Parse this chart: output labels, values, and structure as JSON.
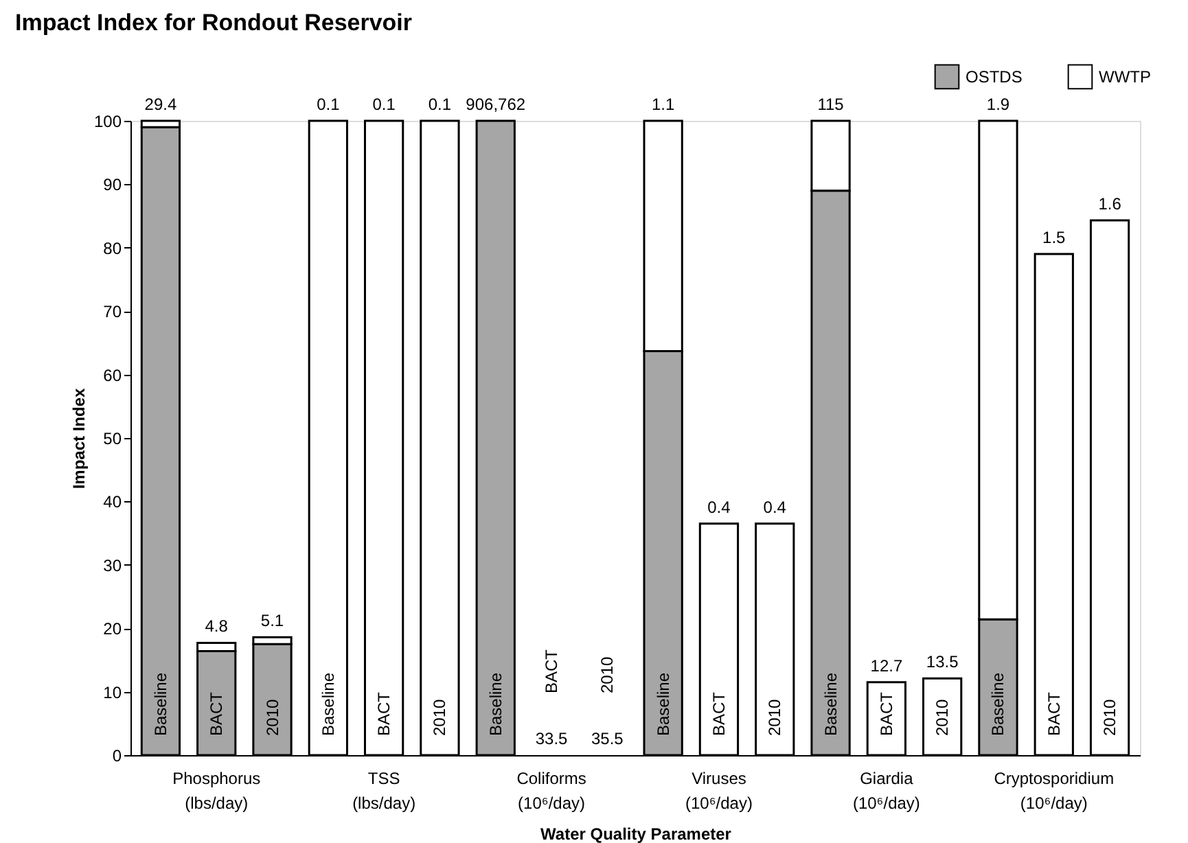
{
  "chart_data": {
    "type": "bar",
    "title": "Impact Index for Rondout Reservoir",
    "xlabel": "Water Quality Parameter",
    "ylabel": "Impact Index",
    "categories": [
      "Baseline",
      "BACT",
      "2010",
      "Baseline",
      "BACT",
      "2010",
      "Baseline",
      "BACT",
      "2010",
      "Baseline",
      "BACT",
      "2010",
      "Baseline",
      "BACT",
      "2010",
      "Baseline",
      "BACT",
      "2010"
    ],
    "stacked": true,
    "series": [
      {
        "name": "OSTDS",
        "color": "#a6a6a6",
        "values": [
          99,
          16.4,
          17.5,
          null,
          null,
          null,
          100,
          null,
          null,
          63.7,
          null,
          null,
          89,
          null,
          null,
          21.4,
          null,
          null
        ]
      },
      {
        "name": "WWTP",
        "color": "#ffffff",
        "values": [
          1,
          1.3,
          1.1,
          100,
          100,
          100,
          null,
          null,
          null,
          36.3,
          36.5,
          36.5,
          11,
          11.5,
          12.1,
          78.6,
          79,
          84.3
        ]
      }
    ],
    "annotations": [
      "Phosphorus\n(lbs/day)",
      "TSS\n(lbs/day)",
      "Coliforms\n(10⁶/day)",
      "Viruses\n(10⁶/day)",
      "Giardia\n(10⁶/day)",
      "Cryptosporidium\n(10⁶/day)",
      "29.4",
      "4.8",
      "5.1",
      "0.1",
      "0.1",
      "0.1",
      "906,762",
      "33.5",
      "35.5",
      "1.1",
      "0.4",
      "0.4",
      "115",
      "12.7",
      "13.5",
      "1.9",
      "1.5",
      "1.6"
    ],
    "ylim": [
      0,
      100
    ],
    "yticks": [
      0,
      10,
      20,
      30,
      40,
      50,
      60,
      70,
      80,
      90,
      100
    ],
    "grid": false,
    "legend": "top right",
    "tick_labels": "y"
  }
}
